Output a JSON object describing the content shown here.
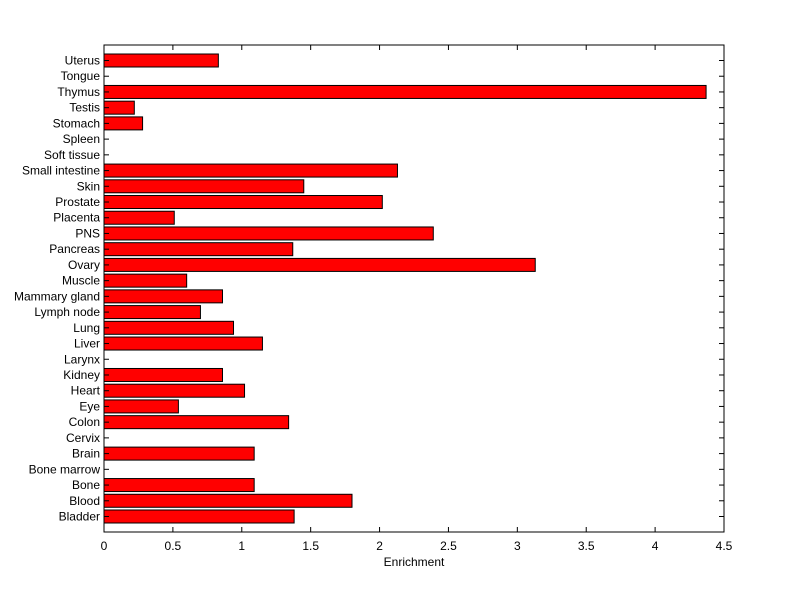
{
  "chart_data": {
    "type": "bar",
    "orientation": "horizontal",
    "title": "",
    "xlabel": "Enrichment",
    "ylabel": "",
    "xlim": [
      0,
      4.5
    ],
    "xticks": [
      0,
      0.5,
      1,
      1.5,
      2,
      2.5,
      3,
      3.5,
      4,
      4.5
    ],
    "xtick_labels": [
      "0",
      "0.5",
      "1",
      "1.5",
      "2",
      "2.5",
      "3",
      "3.5",
      "4",
      "4.5"
    ],
    "grid": false,
    "bar_color": "#ff0000",
    "bar_edge_color": "#000000",
    "categories": [
      "Bladder",
      "Blood",
      "Bone",
      "Bone marrow",
      "Brain",
      "Cervix",
      "Colon",
      "Eye",
      "Heart",
      "Kidney",
      "Larynx",
      "Liver",
      "Lung",
      "Lymph node",
      "Mammary gland",
      "Muscle",
      "Ovary",
      "Pancreas",
      "PNS",
      "Placenta",
      "Prostate",
      "Skin",
      "Small intestine",
      "Soft tissue",
      "Spleen",
      "Stomach",
      "Testis",
      "Thymus",
      "Tongue",
      "Uterus"
    ],
    "values": [
      1.38,
      1.8,
      1.09,
      0,
      1.09,
      0,
      1.34,
      0.54,
      1.02,
      0.86,
      0,
      1.15,
      0.94,
      0.7,
      0.86,
      0.6,
      3.13,
      1.37,
      2.39,
      0.51,
      2.02,
      1.45,
      2.13,
      0,
      0,
      0.28,
      0.22,
      4.37,
      0,
      0.83
    ]
  }
}
